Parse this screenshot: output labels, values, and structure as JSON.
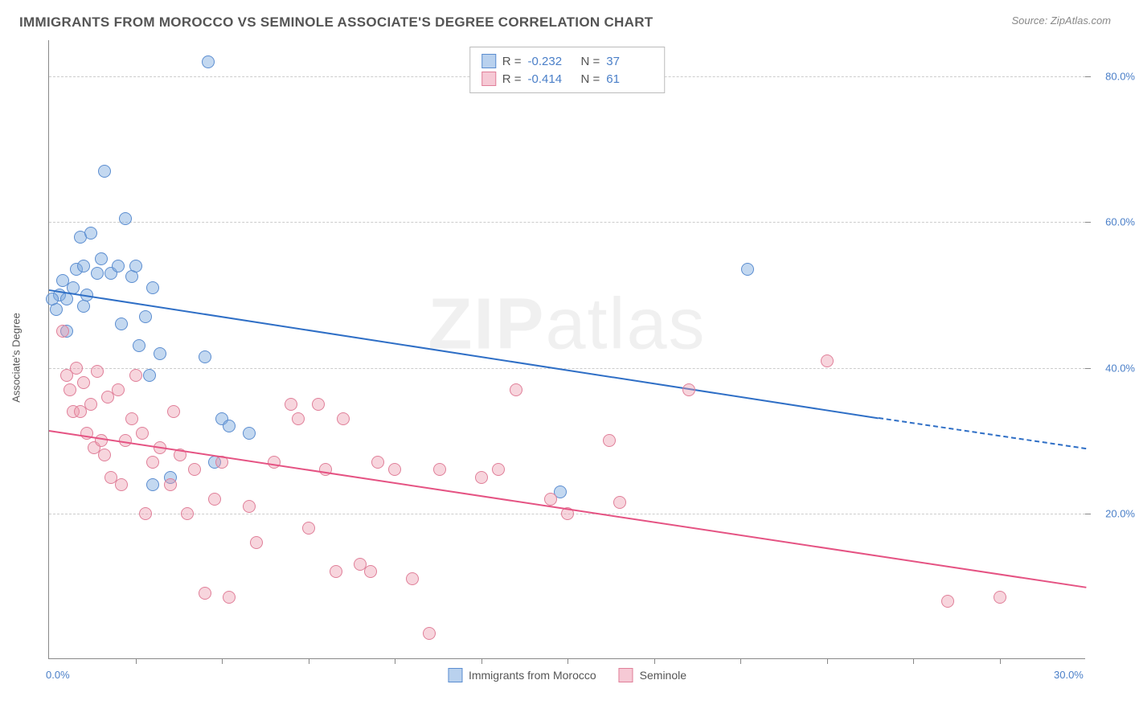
{
  "title": "IMMIGRANTS FROM MOROCCO VS SEMINOLE ASSOCIATE'S DEGREE CORRELATION CHART",
  "source": "Source: ZipAtlas.com",
  "watermark_bold": "ZIP",
  "watermark_light": "atlas",
  "y_axis_title": "Associate's Degree",
  "chart": {
    "type": "scatter",
    "xlim": [
      0,
      30
    ],
    "ylim": [
      0,
      85
    ],
    "x_ticks_minor": [
      2.5,
      5,
      7.5,
      10,
      12.5,
      15,
      17.5,
      20,
      22.5,
      25,
      27.5
    ],
    "x_labels": [
      {
        "v": 0,
        "t": "0.0%"
      },
      {
        "v": 30,
        "t": "30.0%"
      }
    ],
    "y_grid": [
      20,
      40,
      60,
      80
    ],
    "y_labels": [
      {
        "v": 20,
        "t": "20.0%"
      },
      {
        "v": 40,
        "t": "40.0%"
      },
      {
        "v": 60,
        "t": "60.0%"
      },
      {
        "v": 80,
        "t": "80.0%"
      }
    ],
    "background_color": "#ffffff",
    "grid_color": "#cccccc",
    "axis_color": "#888888",
    "label_color": "#4a7fc8",
    "marker_radius": 8,
    "marker_stroke": 1.2,
    "marker_opacity": 0.55,
    "trend_width": 2
  },
  "series": [
    {
      "name": "Immigrants from Morocco",
      "color_fill": "rgba(123,168,222,0.45)",
      "color_stroke": "#5b8dd0",
      "trend_color": "#2f6fc6",
      "swatch_fill": "#b9d1ee",
      "swatch_stroke": "#5b8dd0",
      "R": "-0.232",
      "N": "37",
      "trend": {
        "x1": 0,
        "y1": 50.8,
        "x2": 24,
        "y2": 33.2,
        "dash_x2": 30,
        "dash_y2": 29.0
      },
      "points": [
        [
          0.2,
          48
        ],
        [
          0.3,
          50
        ],
        [
          0.4,
          52
        ],
        [
          0.5,
          49.5
        ],
        [
          0.5,
          45
        ],
        [
          0.7,
          51
        ],
        [
          0.8,
          53.5
        ],
        [
          0.9,
          58
        ],
        [
          1.0,
          54
        ],
        [
          1.0,
          48.5
        ],
        [
          1.1,
          50
        ],
        [
          1.2,
          58.5
        ],
        [
          1.4,
          53
        ],
        [
          1.5,
          55
        ],
        [
          1.6,
          67
        ],
        [
          1.8,
          53
        ],
        [
          2.0,
          54
        ],
        [
          2.1,
          46
        ],
        [
          2.2,
          60.5
        ],
        [
          2.4,
          52.5
        ],
        [
          2.5,
          54
        ],
        [
          2.6,
          43
        ],
        [
          2.8,
          47
        ],
        [
          2.9,
          39
        ],
        [
          3.0,
          24
        ],
        [
          3.0,
          51
        ],
        [
          3.2,
          42
        ],
        [
          3.5,
          25
        ],
        [
          4.5,
          41.5
        ],
        [
          4.6,
          82
        ],
        [
          4.8,
          27
        ],
        [
          5.0,
          33
        ],
        [
          5.2,
          32
        ],
        [
          5.8,
          31
        ],
        [
          14.8,
          23
        ],
        [
          20.2,
          53.5
        ],
        [
          0.1,
          49.5
        ]
      ]
    },
    {
      "name": "Seminole",
      "color_fill": "rgba(236,150,170,0.40)",
      "color_stroke": "#e07f99",
      "trend_color": "#e55383",
      "swatch_fill": "#f6c9d5",
      "swatch_stroke": "#e07f99",
      "R": "-0.414",
      "N": "61",
      "trend": {
        "x1": 0,
        "y1": 31.5,
        "x2": 30,
        "y2": 10.0
      },
      "points": [
        [
          0.4,
          45
        ],
        [
          0.5,
          39
        ],
        [
          0.6,
          37
        ],
        [
          0.7,
          34
        ],
        [
          0.8,
          40
        ],
        [
          0.9,
          34
        ],
        [
          1.0,
          38
        ],
        [
          1.1,
          31
        ],
        [
          1.2,
          35
        ],
        [
          1.3,
          29
        ],
        [
          1.4,
          39.5
        ],
        [
          1.5,
          30
        ],
        [
          1.6,
          28
        ],
        [
          1.7,
          36
        ],
        [
          1.8,
          25
        ],
        [
          2.0,
          37
        ],
        [
          2.1,
          24
        ],
        [
          2.2,
          30
        ],
        [
          2.4,
          33
        ],
        [
          2.5,
          39
        ],
        [
          2.7,
          31
        ],
        [
          2.8,
          20
        ],
        [
          3.0,
          27
        ],
        [
          3.2,
          29
        ],
        [
          3.5,
          24
        ],
        [
          3.6,
          34
        ],
        [
          3.8,
          28
        ],
        [
          4.0,
          20
        ],
        [
          4.2,
          26
        ],
        [
          4.5,
          9
        ],
        [
          4.8,
          22
        ],
        [
          5.0,
          27
        ],
        [
          5.2,
          8.5
        ],
        [
          5.8,
          21
        ],
        [
          6.0,
          16
        ],
        [
          6.5,
          27
        ],
        [
          7.0,
          35
        ],
        [
          7.2,
          33
        ],
        [
          7.5,
          18
        ],
        [
          7.8,
          35
        ],
        [
          8.0,
          26
        ],
        [
          8.3,
          12
        ],
        [
          8.5,
          33
        ],
        [
          9.0,
          13
        ],
        [
          9.3,
          12
        ],
        [
          9.5,
          27
        ],
        [
          10.0,
          26
        ],
        [
          10.5,
          11
        ],
        [
          11.0,
          3.5
        ],
        [
          11.3,
          26
        ],
        [
          12.5,
          25
        ],
        [
          13.0,
          26
        ],
        [
          13.5,
          37
        ],
        [
          14.5,
          22
        ],
        [
          15.0,
          20
        ],
        [
          16.2,
          30
        ],
        [
          16.5,
          21.5
        ],
        [
          18.5,
          37
        ],
        [
          22.5,
          41
        ],
        [
          26.0,
          8
        ],
        [
          27.5,
          8.5
        ]
      ]
    }
  ],
  "legend_top": {
    "r_label": "R =",
    "n_label": "N ="
  },
  "legend_bottom": {
    "s1": "Immigrants from Morocco",
    "s2": "Seminole"
  }
}
